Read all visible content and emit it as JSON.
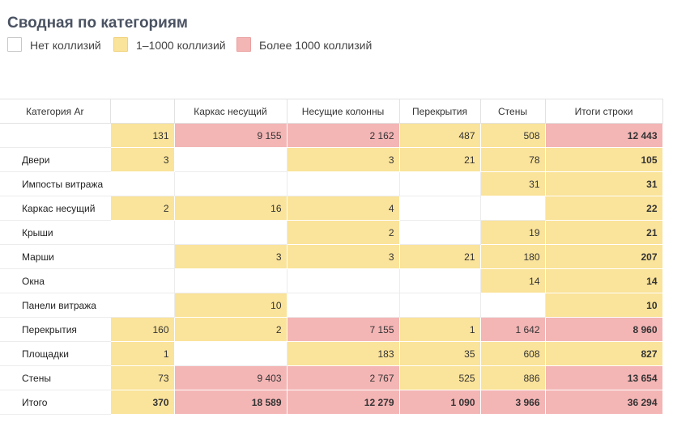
{
  "title": "Сводная по категориям",
  "legend": [
    {
      "label": "Нет коллизий",
      "color": "#ffffff"
    },
    {
      "label": "1–1000 коллизий",
      "color": "#fae39a"
    },
    {
      "label": "Более 1000 коллизий",
      "color": "#f4b5b5"
    }
  ],
  "table": {
    "row_header": "Категория Ar",
    "columns": [
      "",
      "Каркас несущий",
      "Несущие колонны",
      "Перекрытия",
      "Стены",
      "Итоги строки"
    ],
    "rows": [
      {
        "label": "",
        "cells": [
          "131",
          "9 155",
          "2 162",
          "487",
          "508",
          "12 443"
        ]
      },
      {
        "label": "Двери",
        "cells": [
          "3",
          "",
          "3",
          "21",
          "78",
          "105"
        ]
      },
      {
        "label": "Импосты витража",
        "cells": [
          "",
          "",
          "",
          "",
          "31",
          "31"
        ]
      },
      {
        "label": "Каркас несущий",
        "cells": [
          "2",
          "16",
          "4",
          "",
          "",
          "22"
        ]
      },
      {
        "label": "Крыши",
        "cells": [
          "",
          "",
          "2",
          "",
          "19",
          "21"
        ]
      },
      {
        "label": "Марши",
        "cells": [
          "",
          "3",
          "3",
          "21",
          "180",
          "207"
        ]
      },
      {
        "label": "Окна",
        "cells": [
          "",
          "",
          "",
          "",
          "14",
          "14"
        ]
      },
      {
        "label": "Панели витража",
        "cells": [
          "",
          "10",
          "",
          "",
          "",
          "10"
        ]
      },
      {
        "label": "Перекрытия",
        "cells": [
          "160",
          "2",
          "7 155",
          "1",
          "1 642",
          "8 960"
        ]
      },
      {
        "label": "Площадки",
        "cells": [
          "1",
          "",
          "183",
          "35",
          "608",
          "827"
        ]
      },
      {
        "label": "Стены",
        "cells": [
          "73",
          "9 403",
          "2 767",
          "525",
          "886",
          "13 654"
        ]
      },
      {
        "label": "Итого",
        "cells": [
          "370",
          "18 589",
          "12 279",
          "1 090",
          "3 966",
          "36 294"
        ]
      }
    ]
  }
}
